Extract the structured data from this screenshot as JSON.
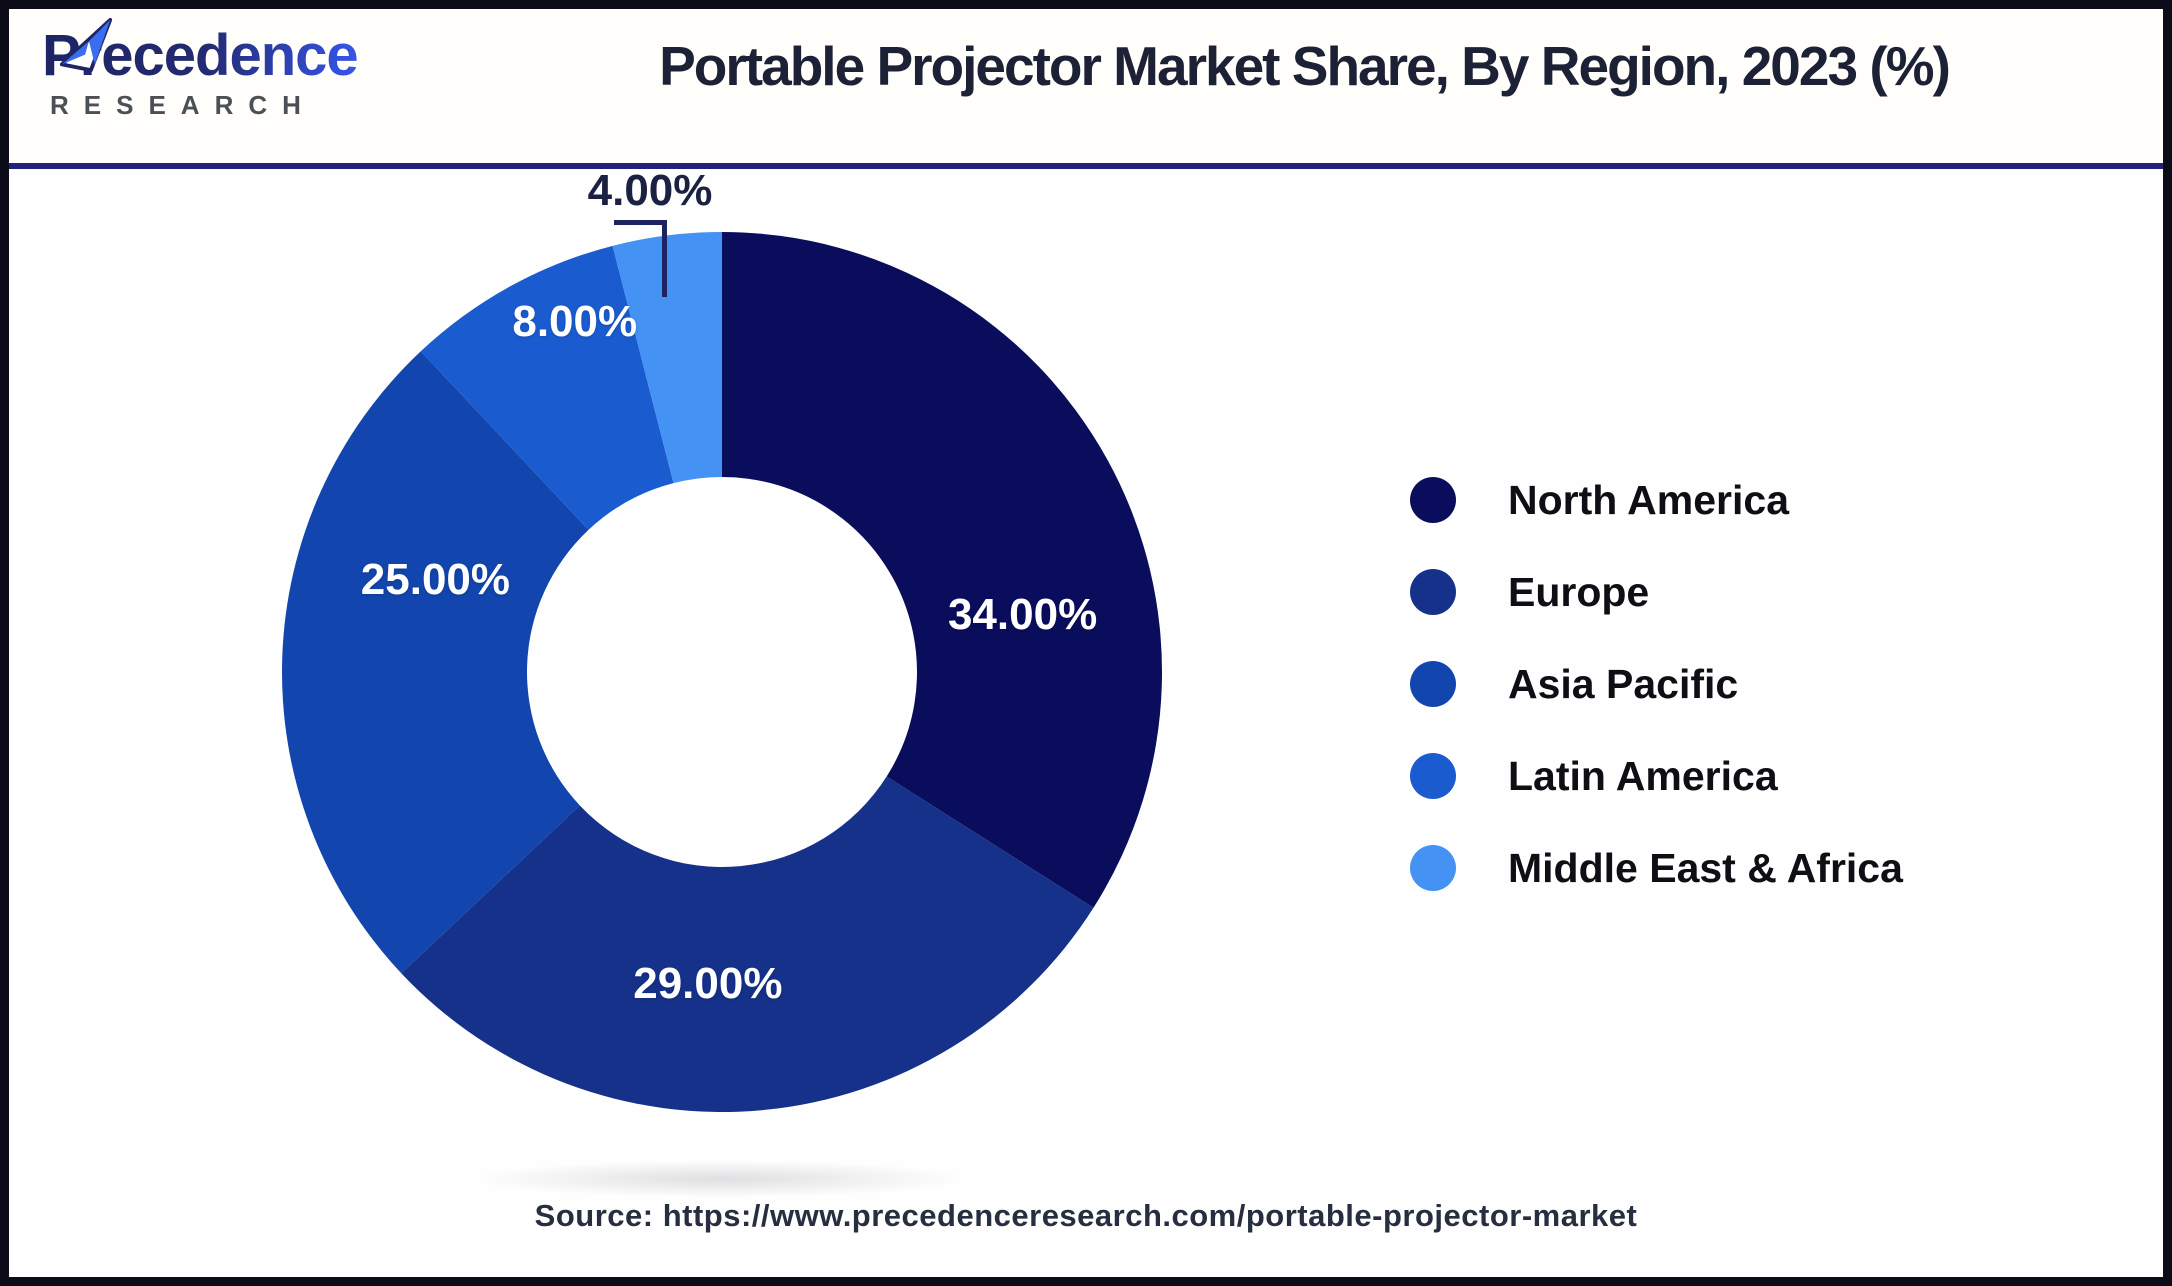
{
  "logo": {
    "brand_top": "Precedence",
    "brand_bottom": "RESEARCH"
  },
  "header": {
    "title": "Portable Projector Market Share, By Region, 2023 (%)"
  },
  "footer": {
    "source_text": "Source: https://www.precedenceresearch.com/portable-projector-market"
  },
  "colors": {
    "header_divider": "#23227a",
    "frame_border": "#0c0c18",
    "title_text": "#1c2135",
    "callout_line": "#1d2460",
    "external_label_text": "#1b2142",
    "legend_text": "#0d0f14",
    "source_text": "#262e3f"
  },
  "chart_data": {
    "type": "pie",
    "subtype": "donut",
    "title": "Portable Projector Market Share, By Region, 2023 (%)",
    "start_angle_deg": 0,
    "direction": "clockwise",
    "legend_position": "right",
    "hole_ratio": 0.44,
    "categories": [
      "North America",
      "Europe",
      "Asia Pacific",
      "Latin America",
      "Middle East & Africa"
    ],
    "values": [
      34,
      29,
      25,
      8,
      4
    ],
    "labels": [
      "34.00%",
      "29.00%",
      "25.00%",
      "8.00%",
      "4.00%"
    ],
    "colors": [
      "#0A0D5C",
      "#15318A",
      "#1246AE",
      "#1A5CD0",
      "#4392F4"
    ]
  }
}
